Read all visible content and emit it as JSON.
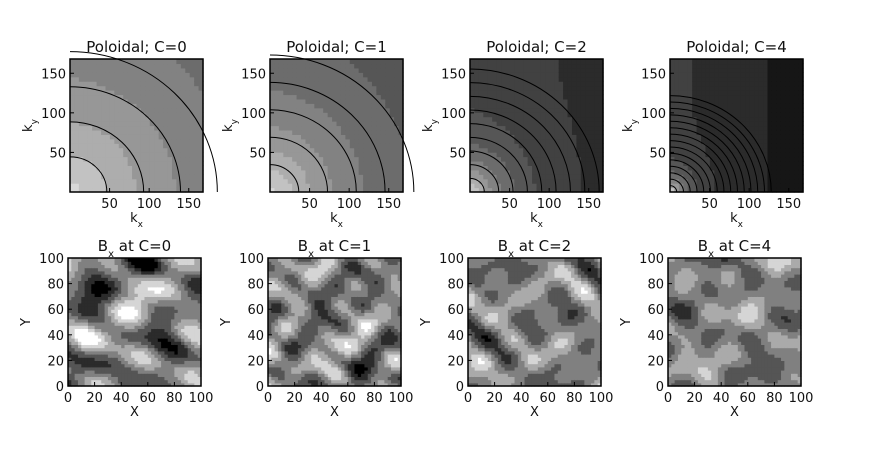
{
  "chart_data": [
    {
      "type": "heatmap",
      "title": "Poloidal; C=0",
      "xlabel": "k",
      "xlabel_sub": "x",
      "ylabel": "k",
      "ylabel_sub": "y",
      "xticks": [
        50,
        100,
        150
      ],
      "yticks": [
        50,
        100,
        150
      ],
      "xlim": [
        0,
        168
      ],
      "ylim": [
        0,
        168
      ],
      "field": {
        "kind": "spectrum",
        "falloff": 0.18,
        "base": 0.42
      },
      "colors": {
        "low": "#000000",
        "high": "#d8d8d8"
      }
    },
    {
      "type": "heatmap",
      "title": "Poloidal; C=1",
      "xlabel": "k",
      "xlabel_sub": "x",
      "ylabel": "k",
      "ylabel_sub": "y",
      "xticks": [
        50,
        100,
        150
      ],
      "yticks": [
        50,
        100,
        150
      ],
      "xlim": [
        0,
        168
      ],
      "ylim": [
        0,
        168
      ],
      "field": {
        "kind": "spectrum",
        "falloff": 0.28,
        "base": 0.38
      },
      "colors": {
        "low": "#000000",
        "high": "#d8d8d8"
      }
    },
    {
      "type": "heatmap",
      "title": "Poloidal; C=2",
      "xlabel": "k",
      "xlabel_sub": "x",
      "ylabel": "k",
      "ylabel_sub": "y",
      "xticks": [
        50,
        100,
        150
      ],
      "yticks": [
        50,
        100,
        150
      ],
      "xlim": [
        0,
        168
      ],
      "ylim": [
        0,
        168
      ],
      "field": {
        "kind": "spectrum",
        "falloff": 0.7,
        "base": 0.3
      },
      "colors": {
        "low": "#000000",
        "high": "#d8d8d8"
      }
    },
    {
      "type": "heatmap",
      "title": "Poloidal; C=4",
      "xlabel": "k",
      "xlabel_sub": "x",
      "ylabel": "k",
      "ylabel_sub": "y",
      "xticks": [
        50,
        100,
        150
      ],
      "yticks": [
        50,
        100,
        150
      ],
      "xlim": [
        0,
        168
      ],
      "ylim": [
        0,
        168
      ],
      "field": {
        "kind": "spectrum",
        "falloff": 1.5,
        "base": 0.28
      },
      "colors": {
        "low": "#000000",
        "high": "#d8d8d8"
      }
    },
    {
      "type": "heatmap",
      "title_pre": "B",
      "title_sub": "x",
      "title_post": " at C=0",
      "xlabel": "X",
      "ylabel": "Y",
      "xticks": [
        0,
        20,
        40,
        60,
        80,
        100
      ],
      "yticks": [
        0,
        20,
        40,
        60,
        80,
        100
      ],
      "xlim": [
        0,
        100
      ],
      "ylim": [
        0,
        100
      ],
      "field": {
        "kind": "turbulent",
        "seed": 3,
        "scale": 1.0
      },
      "colors": {
        "low": "#000000",
        "high": "#ffffff"
      }
    },
    {
      "type": "heatmap",
      "title_pre": "B",
      "title_sub": "x",
      "title_post": " at C=1",
      "xlabel": "X",
      "ylabel": "Y",
      "xticks": [
        0,
        20,
        40,
        60,
        80,
        100
      ],
      "yticks": [
        0,
        20,
        40,
        60,
        80,
        100
      ],
      "xlim": [
        0,
        100
      ],
      "ylim": [
        0,
        100
      ],
      "field": {
        "kind": "turbulent",
        "seed": 7,
        "scale": 0.85
      },
      "colors": {
        "low": "#000000",
        "high": "#ffffff"
      }
    },
    {
      "type": "heatmap",
      "title_pre": "B",
      "title_sub": "x",
      "title_post": " at C=2",
      "xlabel": "X",
      "ylabel": "Y",
      "xticks": [
        0,
        20,
        40,
        60,
        80,
        100
      ],
      "yticks": [
        0,
        20,
        40,
        60,
        80,
        100
      ],
      "xlim": [
        0,
        100
      ],
      "ylim": [
        0,
        100
      ],
      "field": {
        "kind": "turbulent",
        "seed": 11,
        "scale": 0.7
      },
      "colors": {
        "low": "#000000",
        "high": "#ffffff"
      }
    },
    {
      "type": "heatmap",
      "title_pre": "B",
      "title_sub": "x",
      "title_post": " at C=4",
      "xlabel": "X",
      "ylabel": "Y",
      "xticks": [
        0,
        20,
        40,
        60,
        80,
        100
      ],
      "yticks": [
        0,
        20,
        40,
        60,
        80,
        100
      ],
      "xlim": [
        0,
        100
      ],
      "ylim": [
        0,
        100
      ],
      "field": {
        "kind": "turbulent",
        "seed": 17,
        "scale": 0.6
      },
      "colors": {
        "low": "#000000",
        "high": "#ffffff"
      }
    }
  ]
}
